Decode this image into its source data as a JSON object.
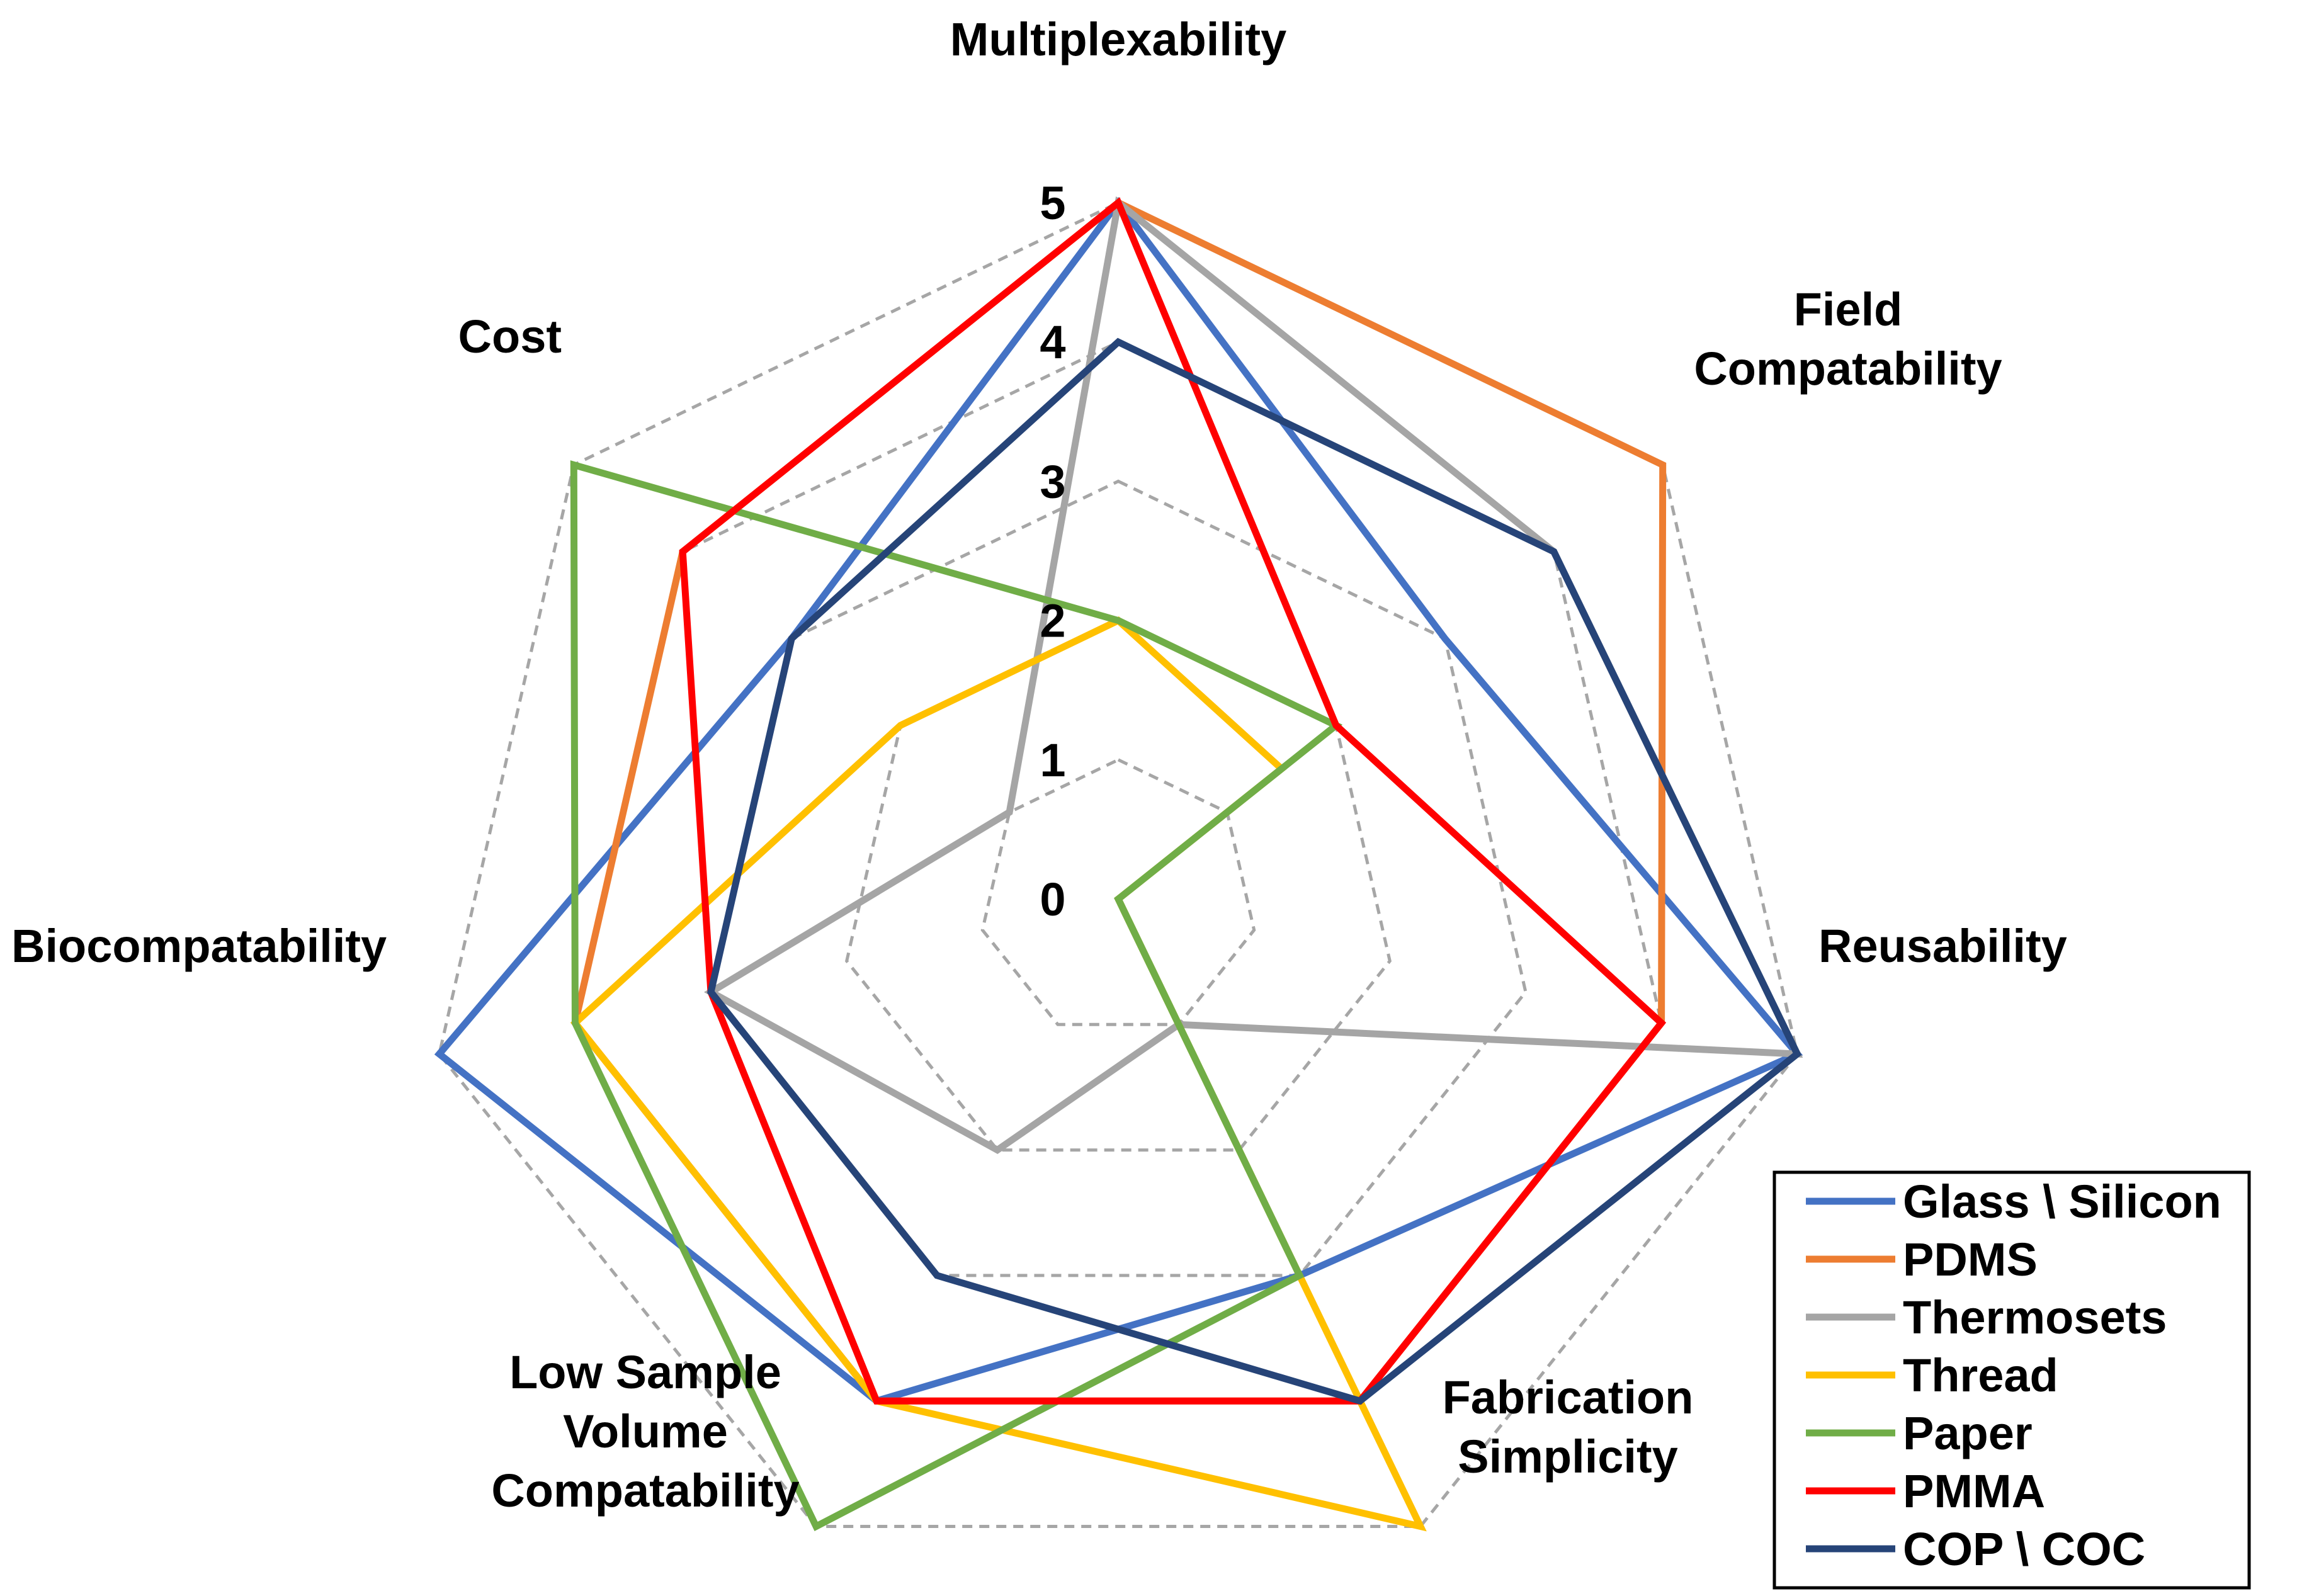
{
  "chart_data": {
    "type": "radar",
    "axes": [
      "Multiplexability",
      "Field Compatability",
      "Reusability",
      "Fabrication Simplicity",
      "Low Sample Volume Compatability",
      "Biocompatability",
      "Cost"
    ],
    "axis_label_lines": [
      [
        "Multiplexability"
      ],
      [
        "Field",
        "Compatability"
      ],
      [
        "Reusability"
      ],
      [
        "Fabrication",
        "Simplicity"
      ],
      [
        "Low Sample",
        "Volume",
        "Compatability"
      ],
      [
        "Biocompatability"
      ],
      [
        "Cost"
      ]
    ],
    "rlim": [
      0,
      5
    ],
    "ticks": [
      "0",
      "1",
      "2",
      "3",
      "4",
      "5"
    ],
    "grid": "dashed gray heptagons",
    "legend_position": "bottom-right",
    "series": [
      {
        "name": "Glass \\ Silicon",
        "color": "#4472C4",
        "values": [
          5,
          3,
          5,
          3,
          4,
          5,
          3
        ]
      },
      {
        "name": "PDMS",
        "color": "#ED7D31",
        "values": [
          5,
          5,
          4,
          4,
          4,
          4,
          4
        ]
      },
      {
        "name": "Thermosets",
        "color": "#A5A5A5",
        "values": [
          5,
          4,
          5,
          1,
          2,
          3,
          1
        ]
      },
      {
        "name": "Thread",
        "color": "#FFC000",
        "values": [
          2,
          1.5,
          0,
          5,
          4,
          4,
          2
        ]
      },
      {
        "name": "Paper",
        "color": "#70AD47",
        "values": [
          2,
          2,
          0,
          3,
          5,
          4,
          5
        ]
      },
      {
        "name": "PMMA",
        "color": "#FF0000",
        "values": [
          5,
          2,
          4,
          4,
          4,
          3,
          4
        ]
      },
      {
        "name": "COP \\ COC",
        "color": "#264478",
        "values": [
          4,
          4,
          5,
          4,
          3,
          3,
          3
        ]
      }
    ]
  }
}
